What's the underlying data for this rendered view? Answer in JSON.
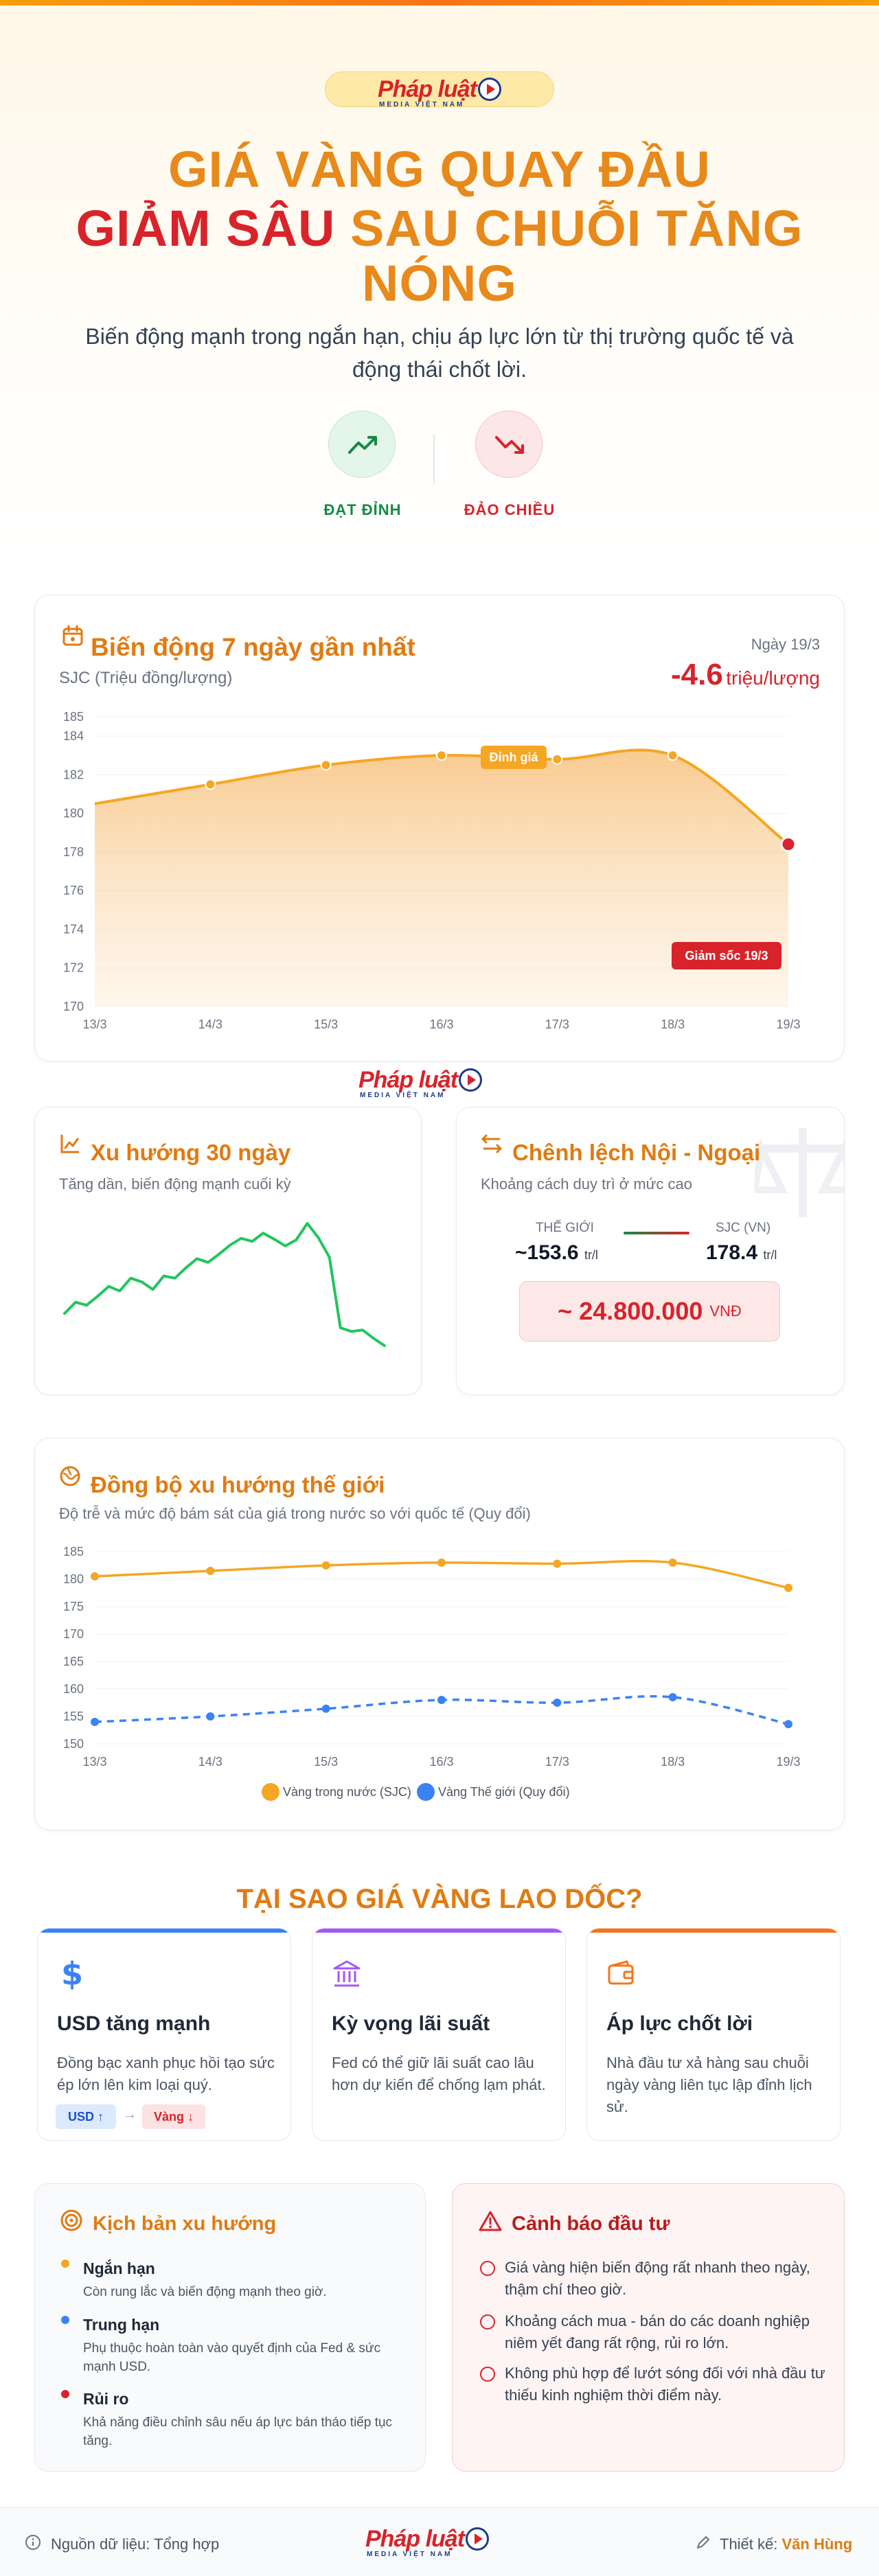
{
  "brand": {
    "name": "Pháp luật",
    "sub": "MEDIA VIỆT NAM"
  },
  "hero": {
    "title_line1": "GIÁ VÀNG QUAY ĐẦU",
    "title_line2_red": "GIẢM SÂU",
    "title_line2_orange": "SAU CHUỖI TĂNG",
    "title_line3": "NÓNG",
    "subtitle": "Biến động mạnh trong ngắn hạn, chịu áp lực lớn từ thị trường quốc tế và động thái chốt lời.",
    "badge_up": "ĐẠT ĐỈNH",
    "badge_down": "ĐẢO CHIỀU"
  },
  "colors": {
    "orange": "#e07b12",
    "red": "#d8232a",
    "green": "#168a44",
    "blue": "#3b82f6"
  },
  "week_card": {
    "title": "Biến động 7 ngày gần nhất",
    "subtitle": "SJC (Triệu đồng/lượng)",
    "date_label": "Ngày 19/3",
    "change_value": "-4.6",
    "change_unit": "triệu/lượng",
    "peak_label": "Đỉnh giá",
    "shock_label": "Giảm sốc 19/3"
  },
  "trend_card": {
    "title": "Xu hướng 30 ngày",
    "subtitle": "Tăng dần, biến động mạnh cuối kỳ"
  },
  "gap_card": {
    "title": "Chênh lệch Nội - Ngoại",
    "subtitle": "Khoảng cách duy trì ở mức cao",
    "world_label": "THẾ GIỚI",
    "world_value": "~153.6",
    "domestic_label": "SJC (VN)",
    "domestic_value": "178.4",
    "unit": "tr/l",
    "gap_value": "~ 24.800.000",
    "gap_unit": "VNĐ"
  },
  "sync_card": {
    "title": "Đồng bộ xu hướng thế giới",
    "subtitle": "Độ trễ và mức độ bám sát của giá trong nước so với quốc tế (Quy đổi)"
  },
  "chart_data": [
    {
      "type": "area",
      "categories": [
        "13/3",
        "14/3",
        "15/3",
        "16/3",
        "17/3",
        "18/3",
        "19/3"
      ],
      "series": [
        {
          "values": [
            180.5,
            181.5,
            182.5,
            183,
            182.8,
            183,
            178.4
          ]
        }
      ],
      "ylim": [
        170,
        185
      ],
      "yticks": [
        170,
        172,
        174,
        176,
        178,
        180,
        182,
        184,
        185
      ],
      "annotations": [
        "Đỉnh giá",
        "Giảm sốc 19/3"
      ]
    },
    {
      "type": "line",
      "series": [
        {
          "values": [
            174.5,
            176,
            175.6,
            176.8,
            178.1,
            177.5,
            179.2,
            178.7,
            177.7,
            179.5,
            179.2,
            180.6,
            181.8,
            181.3,
            182.4,
            183.6,
            184.5,
            184.1,
            185.2,
            184.4,
            183.5,
            184.3,
            186.5,
            184.6,
            182,
            172.6,
            172.1,
            172.3,
            171.2,
            170.2
          ]
        }
      ]
    },
    {
      "type": "line",
      "categories": [
        "13/3",
        "14/3",
        "15/3",
        "16/3",
        "17/3",
        "18/3",
        "19/3"
      ],
      "series": [
        {
          "name": "Vàng trong nước (SJC)",
          "values": [
            180.5,
            181.5,
            182.5,
            183,
            182.8,
            183,
            178.4
          ]
        },
        {
          "name": "Vàng Thế giới (Quy đổi)",
          "values": [
            154,
            155,
            156.4,
            158,
            157.5,
            158.5,
            153.6
          ]
        }
      ],
      "ylim": [
        150,
        185
      ],
      "yticks": [
        150,
        155,
        160,
        165,
        170,
        175,
        180,
        185
      ],
      "legend": "bottom"
    }
  ],
  "reasons": {
    "heading": "TẠI SAO GIÁ VÀNG LAO DỐC?",
    "items": [
      {
        "title": "USD tăng mạnh",
        "text": "Đồng bạc xanh phục hồi tạo sức ép lớn lên kim loại quý.",
        "tag1": "USD ↑",
        "tag2": "Vàng ↓"
      },
      {
        "title": "Kỳ vọng lãi suất",
        "text": "Fed có thể giữ lãi suất cao lâu hơn dự kiến để chống lạm phát."
      },
      {
        "title": "Áp lực chốt lời",
        "text": "Nhà đầu tư xả hàng sau chuỗi ngày vàng liên tục lập đỉnh lịch sử."
      }
    ]
  },
  "scenarios": {
    "title": "Kịch bản xu hướng",
    "items": [
      {
        "heading": "Ngắn hạn",
        "text": "Còn rung lắc và biến động mạnh theo giờ."
      },
      {
        "heading": "Trung hạn",
        "text": "Phụ thuộc hoàn toàn vào quyết định của Fed & sức mạnh USD."
      },
      {
        "heading": "Rủi ro",
        "text": "Khả năng điều chỉnh sâu nếu áp lực bán tháo tiếp tục tăng."
      }
    ]
  },
  "warning": {
    "title": "Cảnh báo đầu tư",
    "items": [
      "Giá vàng hiện biến động rất nhanh theo ngày, thậm chí theo giờ.",
      "Khoảng cách mua - bán do các doanh nghiệp niêm yết đang rất rộng, rủi ro lớn.",
      "Không phù hợp để lướt sóng đối với nhà đầu tư thiếu kinh nghiệm thời điểm này."
    ]
  },
  "footer": {
    "source": "Nguồn dữ liệu: Tổng hợp",
    "designer_label": "Thiết kế:",
    "designer_name": "Văn Hùng"
  }
}
